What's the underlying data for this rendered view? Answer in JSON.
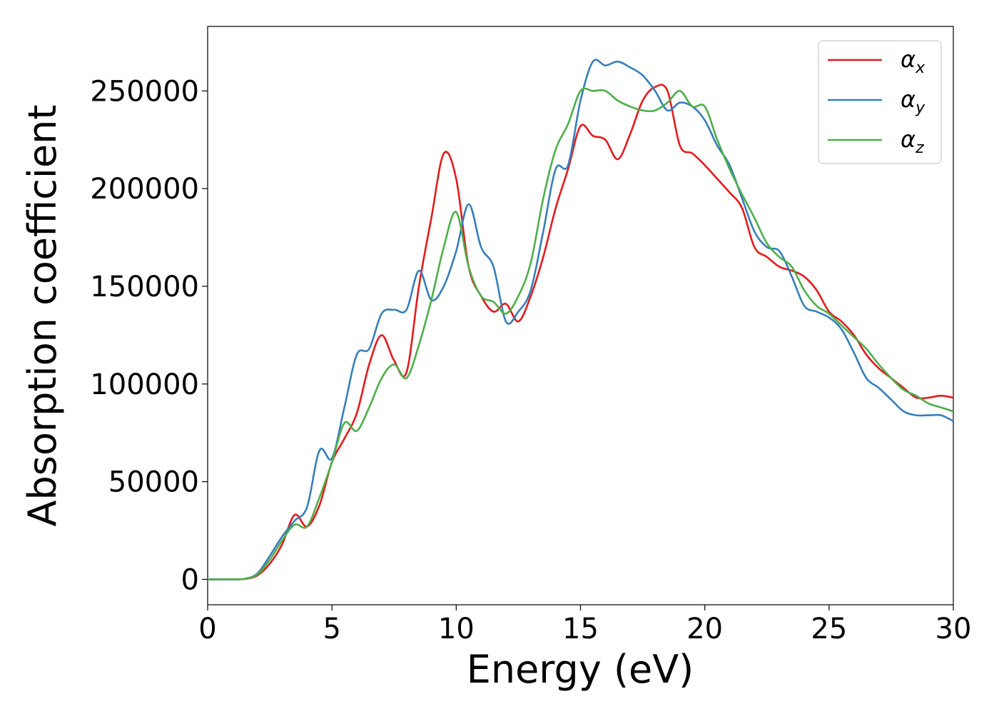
{
  "chart_data": {
    "type": "line",
    "xlabel": "Energy (eV)",
    "ylabel": "Absorption coefficient",
    "xlim": [
      0,
      30
    ],
    "ylim": [
      -13000,
      283000
    ],
    "xticks": [
      "0",
      "5",
      "10",
      "15",
      "20",
      "25",
      "30"
    ],
    "xtick_values": [
      0,
      5,
      10,
      15,
      20,
      25,
      30
    ],
    "yticks": [
      "0",
      "50000",
      "100000",
      "150000",
      "200000",
      "250000"
    ],
    "ytick_values": [
      0,
      50000,
      100000,
      150000,
      200000,
      250000
    ],
    "grid": false,
    "legend_position": "top-right",
    "x": [
      0,
      0.5,
      1,
      1.5,
      2,
      2.5,
      3,
      3.5,
      4,
      4.5,
      5,
      5.5,
      6,
      6.5,
      7,
      7.5,
      8,
      8.5,
      9,
      9.5,
      10,
      10.5,
      11,
      11.5,
      12,
      12.5,
      13,
      13.5,
      14,
      14.5,
      15,
      15.5,
      16,
      16.5,
      17,
      17.5,
      18,
      18.5,
      19,
      19.5,
      20,
      20.5,
      21,
      21.5,
      22,
      22.5,
      23,
      23.5,
      24,
      24.5,
      25,
      25.5,
      26,
      26.5,
      27,
      27.5,
      28,
      28.5,
      29,
      29.5,
      30
    ],
    "series": [
      {
        "name": "α",
        "subscript": "x",
        "color": "#e41a1c",
        "values": [
          0,
          0,
          0,
          200,
          2000,
          8000,
          18000,
          33000,
          27000,
          38000,
          60000,
          72000,
          85000,
          110000,
          125000,
          112000,
          106000,
          150000,
          185000,
          218000,
          205000,
          160000,
          145000,
          137000,
          141000,
          132000,
          145000,
          165000,
          190000,
          210000,
          232000,
          227000,
          225000,
          215000,
          228000,
          245000,
          252000,
          250000,
          222000,
          218000,
          212000,
          205000,
          198000,
          190000,
          170000,
          165000,
          160000,
          158000,
          155000,
          148000,
          137000,
          132000,
          125000,
          115000,
          108000,
          103000,
          98000,
          93000,
          93000,
          94000,
          93000
        ]
      },
      {
        "name": "α",
        "subscript": "y",
        "color": "#377eb8",
        "values": [
          0,
          0,
          0,
          300,
          3000,
          12000,
          22000,
          30000,
          37000,
          66000,
          62000,
          88000,
          115000,
          118000,
          136000,
          138000,
          138000,
          158000,
          143000,
          150000,
          168000,
          192000,
          170000,
          160000,
          132000,
          137000,
          148000,
          178000,
          210000,
          212000,
          245000,
          265000,
          263000,
          265000,
          262000,
          258000,
          250000,
          240000,
          244000,
          242000,
          235000,
          222000,
          212000,
          195000,
          178000,
          170000,
          168000,
          155000,
          140000,
          137000,
          134000,
          128000,
          116000,
          103000,
          98000,
          92000,
          86000,
          84000,
          84000,
          84000,
          81000
        ]
      },
      {
        "name": "α",
        "subscript": "z",
        "color": "#4daf4a",
        "values": [
          0,
          0,
          0,
          300,
          2500,
          10000,
          20000,
          28000,
          27000,
          42000,
          60000,
          80000,
          76000,
          88000,
          103000,
          110000,
          103000,
          120000,
          143000,
          170000,
          188000,
          160000,
          145000,
          142000,
          136000,
          145000,
          162000,
          195000,
          220000,
          233000,
          250000,
          250000,
          250000,
          245000,
          242000,
          240000,
          240000,
          244000,
          250000,
          242000,
          242000,
          225000,
          210000,
          197000,
          185000,
          172000,
          165000,
          160000,
          148000,
          140000,
          136000,
          130000,
          124000,
          118000,
          110000,
          103000,
          97000,
          94000,
          90000,
          88000,
          86000
        ]
      }
    ]
  }
}
